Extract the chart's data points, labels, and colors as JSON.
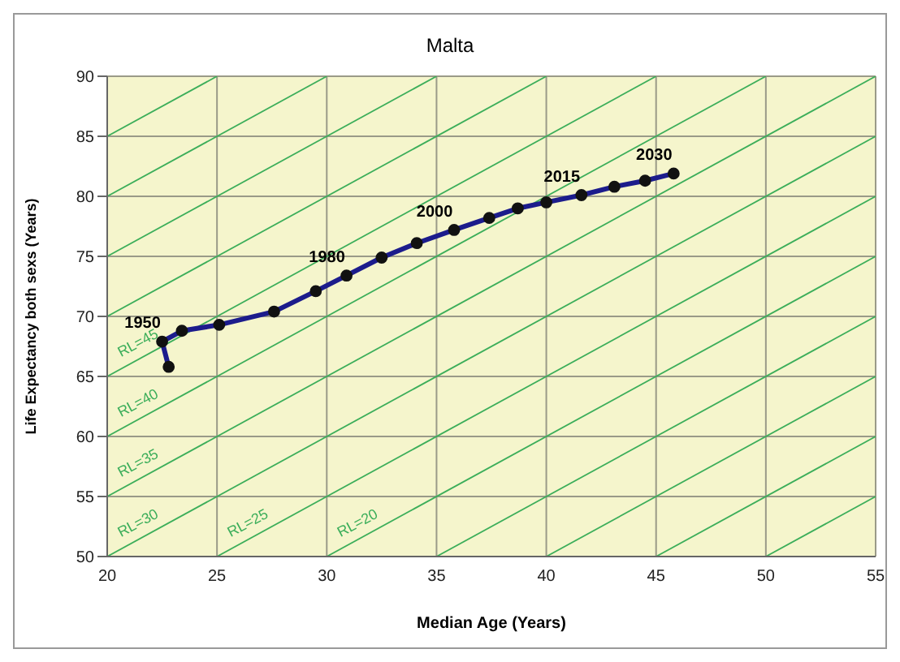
{
  "chart_data": {
    "type": "line",
    "title": "Malta",
    "xlabel": "Median Age (Years)",
    "ylabel": "Life Expectancy both sexs (Years)",
    "xlim": [
      20,
      55
    ],
    "xticks": [
      20,
      25,
      30,
      35,
      40,
      45,
      50,
      55
    ],
    "ylim": [
      50,
      90
    ],
    "yticks": [
      50,
      55,
      60,
      65,
      70,
      75,
      80,
      85,
      90
    ],
    "grid": true,
    "legend": false,
    "series": [
      {
        "x": [
          50,
          55
        ],
        "values": [
          50,
          55
        ],
        "color": "#3cae5a"
      },
      {
        "x": [
          45,
          55
        ],
        "values": [
          50,
          60
        ],
        "color": "#3cae5a"
      },
      {
        "x": [
          40,
          55
        ],
        "values": [
          50,
          65
        ],
        "color": "#3cae5a"
      },
      {
        "x": [
          35,
          55
        ],
        "values": [
          50,
          70
        ],
        "color": "#3cae5a"
      },
      {
        "name": "RL=20",
        "x": [
          30,
          55
        ],
        "values": [
          50,
          75
        ],
        "color": "#3cae5a"
      },
      {
        "name": "RL=25",
        "x": [
          25,
          55
        ],
        "values": [
          50,
          80
        ],
        "color": "#3cae5a"
      },
      {
        "name": "RL=30",
        "x": [
          20,
          55
        ],
        "values": [
          50,
          85
        ],
        "color": "#3cae5a"
      },
      {
        "name": "RL=35",
        "x": [
          20,
          55
        ],
        "values": [
          55,
          90
        ],
        "color": "#3cae5a"
      },
      {
        "name": "RL=40",
        "x": [
          20,
          50
        ],
        "values": [
          60,
          90
        ],
        "color": "#3cae5a"
      },
      {
        "name": "RL=45",
        "x": [
          20,
          45
        ],
        "values": [
          65,
          90
        ],
        "color": "#3cae5a"
      },
      {
        "x": [
          20,
          40
        ],
        "values": [
          70,
          90
        ],
        "color": "#3cae5a"
      },
      {
        "x": [
          20,
          35
        ],
        "values": [
          75,
          90
        ],
        "color": "#3cae5a"
      },
      {
        "x": [
          20,
          30
        ],
        "values": [
          80,
          90
        ],
        "color": "#3cae5a"
      },
      {
        "x": [
          20,
          25
        ],
        "values": [
          85,
          90
        ],
        "color": "#3cae5a"
      },
      {
        "marker": "circle",
        "line_style": "solid",
        "color": "#1c1c8c",
        "x": [
          22.8,
          22.5,
          23.4,
          25.1,
          27.6,
          29.5,
          30.9,
          32.5,
          34.1,
          35.8,
          37.4,
          38.7,
          40.0,
          41.6,
          43.1,
          44.5,
          45.8
        ],
        "values": [
          65.8,
          67.9,
          68.8,
          69.3,
          70.4,
          72.1,
          73.4,
          74.9,
          76.1,
          77.2,
          78.2,
          79.0,
          79.5,
          80.1,
          80.8,
          81.3,
          81.9
        ]
      }
    ],
    "annotations": [
      {
        "text": "1950",
        "x": 22.5,
        "y": 67.9
      },
      {
        "text": "1980",
        "x": 30.9,
        "y": 73.4
      },
      {
        "text": "2000",
        "x": 35.8,
        "y": 77.2
      },
      {
        "text": "2015",
        "x": 41.6,
        "y": 80.1
      },
      {
        "text": "2030",
        "x": 45.8,
        "y": 81.9
      }
    ]
  }
}
